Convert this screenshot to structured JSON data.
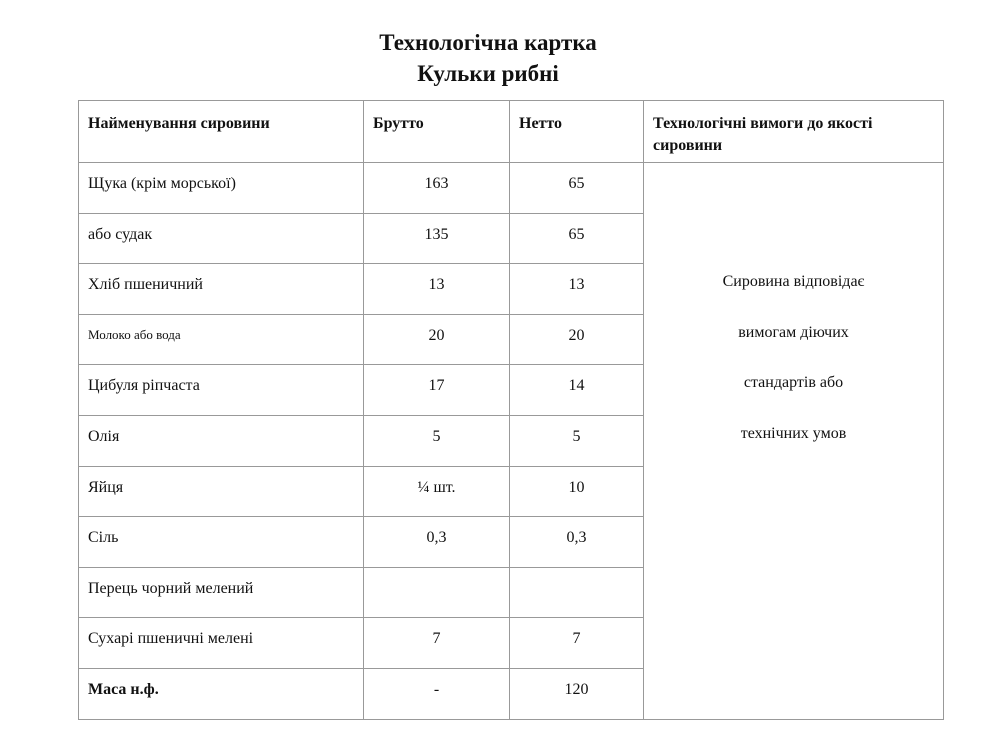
{
  "header": {
    "title": "Технологічна картка",
    "subtitle": "Кульки рибні"
  },
  "table": {
    "columns": [
      "Найменування сировини",
      "Брутто",
      "Нетто",
      "Технологічні вимоги до якості сировини"
    ],
    "rows": [
      [
        "Щука (крім морської)",
        "163",
        "65"
      ],
      [
        "або судак",
        "135",
        "65"
      ],
      [
        "Хліб пшеничний",
        "13",
        "13"
      ],
      [
        "Молоко або вода",
        "20",
        "20"
      ],
      [
        "Цибуля ріпчаста",
        "17",
        "14"
      ],
      [
        "Олія",
        "5",
        "5"
      ],
      [
        "Яйця",
        "¼ шт.",
        "10"
      ],
      [
        "Сіль",
        "0,3",
        "0,3"
      ],
      [
        "Перець чорний мелений",
        null,
        null
      ],
      [
        "Сухарі пшеничні мелені",
        "7",
        "7"
      ],
      [
        "Маса н.ф.",
        "-",
        "120"
      ]
    ],
    "requirements": [
      "Сировина відповідає",
      "вимогам діючих",
      "стандартів або",
      "технічних умов"
    ]
  }
}
